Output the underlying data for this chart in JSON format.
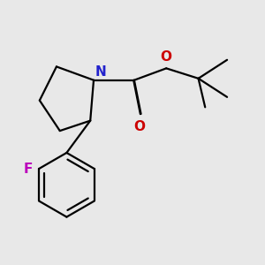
{
  "background_color": "#e8e8e8",
  "bond_color": "#000000",
  "bond_width": 1.6,
  "atom_colors": {
    "N": "#2222cc",
    "O": "#cc0000",
    "F": "#bb00bb"
  },
  "font_size_atoms": 11,
  "figsize": [
    3.0,
    3.0
  ],
  "dpi": 100
}
